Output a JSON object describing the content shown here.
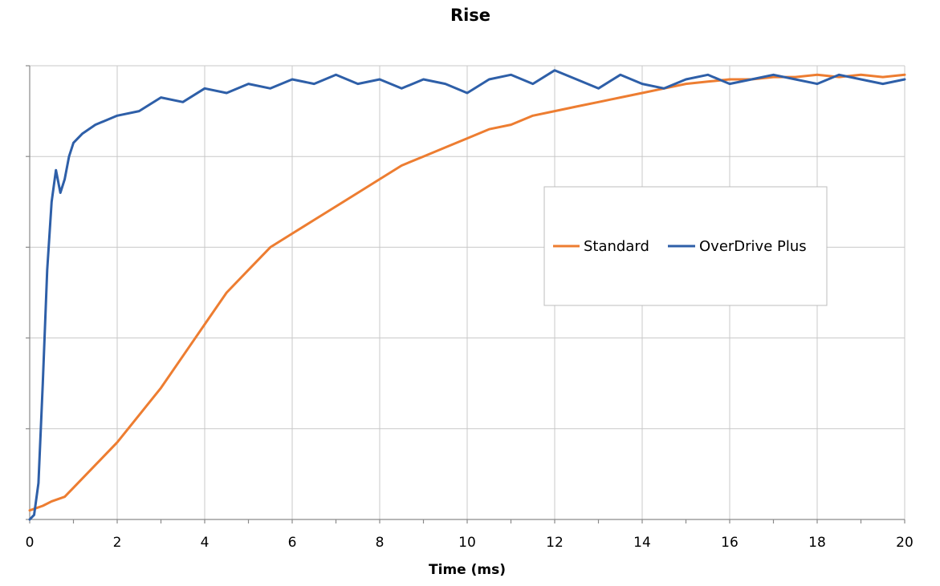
{
  "chart_data": {
    "type": "line",
    "title": "Rise",
    "xlabel": "Time (ms)",
    "ylabel": "",
    "xlim": [
      0,
      20
    ],
    "ylim": [
      0,
      100
    ],
    "x_ticks": [
      "0",
      "2",
      "4",
      "6",
      "8",
      "10",
      "12",
      "14",
      "16",
      "18",
      "20"
    ],
    "y_gridlines": 5,
    "grid": true,
    "legend_placement": "center-right",
    "series": [
      {
        "name": "Standard",
        "color": "#ED7D31",
        "x": [
          0,
          0.3,
          0.5,
          0.8,
          1.0,
          1.5,
          2.0,
          2.5,
          3.0,
          3.5,
          4.0,
          4.5,
          5.0,
          5.5,
          6.0,
          6.5,
          7.0,
          7.5,
          8.0,
          8.5,
          9.0,
          9.5,
          10.0,
          10.5,
          11.0,
          11.5,
          12.0,
          12.5,
          13.0,
          13.5,
          14.0,
          14.5,
          15.0,
          15.5,
          16.0,
          16.5,
          17.0,
          17.5,
          18.0,
          18.5,
          19.0,
          19.5,
          20.0
        ],
        "y": [
          2,
          3,
          4,
          5,
          7,
          12,
          17,
          23,
          29,
          36,
          43,
          50,
          55,
          60,
          63,
          66,
          69,
          72,
          75,
          78,
          80,
          82,
          84,
          86,
          87,
          89,
          90,
          91,
          92,
          93,
          94,
          95,
          96,
          96.5,
          97,
          97,
          97.5,
          97.5,
          98,
          97.5,
          98,
          97.5,
          98
        ]
      },
      {
        "name": "OverDrive Plus",
        "color": "#2E5FA8",
        "x": [
          0,
          0.1,
          0.2,
          0.3,
          0.4,
          0.5,
          0.6,
          0.7,
          0.8,
          0.9,
          1.0,
          1.2,
          1.5,
          2.0,
          2.5,
          3.0,
          3.5,
          4.0,
          4.5,
          5.0,
          5.5,
          6.0,
          6.5,
          7.0,
          7.5,
          8.0,
          8.5,
          9.0,
          9.5,
          10.0,
          10.5,
          11.0,
          11.5,
          12.0,
          12.5,
          13.0,
          13.5,
          14.0,
          14.5,
          15.0,
          15.5,
          16.0,
          16.5,
          17.0,
          17.5,
          18.0,
          18.5,
          19.0,
          19.5,
          20.0
        ],
        "y": [
          0,
          1,
          8,
          30,
          55,
          70,
          77,
          72,
          75,
          80,
          83,
          85,
          87,
          89,
          90,
          93,
          92,
          95,
          94,
          96,
          95,
          97,
          96,
          98,
          96,
          97,
          95,
          97,
          96,
          94,
          97,
          98,
          96,
          99,
          97,
          95,
          98,
          96,
          95,
          97,
          98,
          96,
          97,
          98,
          97,
          96,
          98,
          97,
          96,
          97
        ]
      }
    ]
  }
}
